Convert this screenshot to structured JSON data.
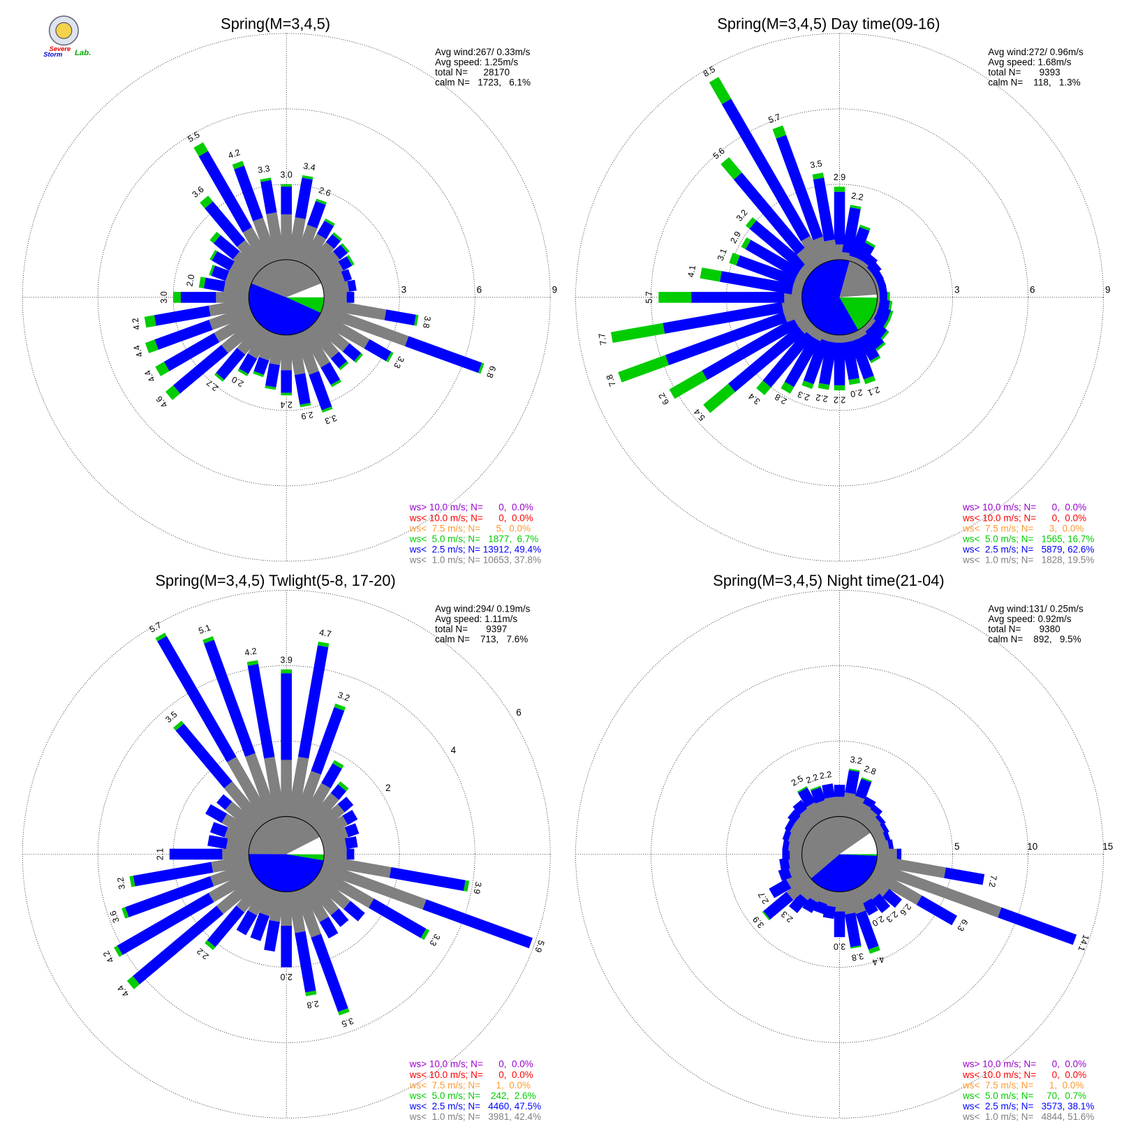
{
  "chart_data": [
    {
      "type": "windrose",
      "title": "Spring(M=3,4,5)",
      "logo_text": [
        "Severe",
        "Storm",
        "Lab."
      ],
      "rlim": [
        0,
        9
      ],
      "rticks": [
        3,
        6,
        9
      ],
      "rlabel_angle": 90,
      "stats": [
        "Avg wind:267/ 0.33m/s",
        "Avg speed: 1.25m/s",
        "total N=      28170"
      ],
      "calm": {
        "text": "calm N=   1723,   6.1%",
        "percent": 6.1
      },
      "legend": [
        {
          "text": "ws> 10.0 m/s; N=      0,  0.0%",
          "color": "#9900cc",
          "percent": 0.0
        },
        {
          "text": "ws< 10.0 m/s; N=      0,  0.0%",
          "color": "#ff0000",
          "percent": 0.0
        },
        {
          "text": "ws<  7.5 m/s; N=      5,  0.0%",
          "color": "#ff9933",
          "percent": 0.0
        },
        {
          "text": "ws<  5.0 m/s; N=   1877,  6.7%",
          "color": "#00cc00",
          "percent": 6.7
        },
        {
          "text": "ws<  2.5 m/s; N= 13912, 49.4%",
          "color": "#0000ff",
          "percent": 49.4
        },
        {
          "text": "ws<  1.0 m/s; N= 10653, 37.8%",
          "color": "#808080",
          "percent": 37.8
        }
      ],
      "series": [
        {
          "color": "#808080",
          "values": [
            1.8,
            1.7,
            1.5,
            1.3,
            1.2,
            1.1,
            1.0,
            0.9,
            1.0,
            0.9,
            2.5,
            3.6,
            2.2,
            1.6,
            1.5,
            1.6,
            1.7,
            1.6,
            1.4,
            1.2,
            1.1,
            1.2,
            1.3,
            1.7,
            1.7,
            1.7,
            1.6,
            1.3,
            1.0,
            1.0,
            1.0,
            1.1,
            1.3,
            1.6,
            1.8,
            1.9
          ]
        },
        {
          "color": "#0000ff",
          "values": [
            1.1,
            1.6,
            1.0,
            0.6,
            0.4,
            0.4,
            0.4,
            0.3,
            0.3,
            0.3,
            1.2,
            3.1,
            1.0,
            0.6,
            0.5,
            0.8,
            1.5,
            1.2,
            0.9,
            0.9,
            0.6,
            0.7,
            1.3,
            2.5,
            2.3,
            2.3,
            2.2,
            1.4,
            0.8,
            0.6,
            0.8,
            1.0,
            2.0,
            3.5,
            2.2,
            1.3
          ]
        },
        {
          "color": "#00cc00",
          "values": [
            0.1,
            0.1,
            0.1,
            0.1,
            0.1,
            0.1,
            0.1,
            0.0,
            0.0,
            0.0,
            0.1,
            0.1,
            0.1,
            0.1,
            0.1,
            0.1,
            0.1,
            0.1,
            0.1,
            0.1,
            0.1,
            0.1,
            0.1,
            0.4,
            0.4,
            0.4,
            0.4,
            0.3,
            0.2,
            0.1,
            0.1,
            0.2,
            0.3,
            0.4,
            0.2,
            0.1
          ]
        }
      ],
      "total_labels": [
        "3.0",
        "3.4",
        "2.6",
        null,
        null,
        null,
        null,
        null,
        null,
        null,
        "3.8",
        "6.8",
        "3.3",
        null,
        null,
        null,
        "3.3",
        "2.9",
        "2.4",
        null,
        null,
        "2.0",
        "2.7",
        "4.6",
        "4.4",
        "4.4",
        "4.2",
        "3.0",
        "2.0",
        null,
        null,
        null,
        "3.6",
        "5.5",
        "4.2",
        "3.3"
      ]
    },
    {
      "type": "windrose",
      "title": "Spring(M=3,4,5) Day time(09-16)",
      "rlim": [
        0,
        9
      ],
      "rticks": [
        3,
        6,
        9
      ],
      "rlabel_angle": 90,
      "stats": [
        "Avg wind:272/ 0.96m/s",
        "Avg speed: 1.68m/s",
        "total N=       9393"
      ],
      "calm": {
        "text": "calm N=    118,   1.3%",
        "percent": 1.3
      },
      "legend": [
        {
          "text": "ws> 10.0 m/s; N=      0,  0.0%",
          "color": "#9900cc",
          "percent": 0.0
        },
        {
          "text": "ws< 10.0 m/s; N=      0,  0.0%",
          "color": "#ff0000",
          "percent": 0.0
        },
        {
          "text": "ws<  7.5 m/s; N=      3,  0.0%",
          "color": "#ff9933",
          "percent": 0.0
        },
        {
          "text": "ws<  5.0 m/s; N=   1565, 16.7%",
          "color": "#00cc00",
          "percent": 16.7
        },
        {
          "text": "ws<  2.5 m/s; N=   5879, 62.6%",
          "color": "#0000ff",
          "percent": 62.6
        },
        {
          "text": "ws<  1.0 m/s; N=   1828, 19.5%",
          "color": "#808080",
          "percent": 19.5
        }
      ],
      "series": [
        {
          "color": "#808080",
          "values": [
            0.6,
            0.3,
            0.2,
            0.2,
            0.2,
            0.1,
            0.1,
            0.1,
            0.1,
            0.1,
            0.1,
            0.1,
            0.1,
            0.2,
            0.2,
            0.3,
            0.3,
            0.3,
            0.3,
            0.3,
            0.3,
            0.4,
            0.4,
            0.5,
            0.5,
            0.8,
            0.8,
            0.7,
            0.4,
            0.4,
            0.4,
            0.4,
            0.9,
            1.2,
            1.0,
            0.8
          ]
        },
        {
          "color": "#0000ff",
          "values": [
            2.1,
            1.8,
            1.2,
            0.7,
            0.4,
            0.4,
            0.3,
            0.3,
            0.3,
            0.3,
            0.4,
            0.5,
            0.5,
            0.6,
            0.8,
            1.0,
            1.6,
            1.5,
            1.7,
            1.7,
            1.8,
            2.1,
            2.6,
            3.6,
            4.2,
            5.0,
            4.8,
            3.7,
            2.9,
            2.4,
            2.3,
            2.6,
            3.9,
            6.3,
            4.3,
            2.5
          ]
        },
        {
          "color": "#00cc00",
          "values": [
            0.2,
            0.1,
            0.1,
            0.1,
            0.0,
            0.0,
            0.0,
            0.0,
            0.0,
            0.1,
            0.1,
            0.1,
            0.1,
            0.1,
            0.1,
            0.1,
            0.2,
            0.2,
            0.2,
            0.2,
            0.2,
            0.3,
            0.4,
            1.3,
            1.5,
            2.0,
            2.1,
            1.3,
            0.8,
            0.3,
            0.2,
            0.2,
            0.8,
            1.0,
            0.4,
            0.2
          ]
        }
      ],
      "total_labels": [
        "2.9",
        "2.2",
        null,
        null,
        null,
        null,
        null,
        null,
        null,
        null,
        null,
        null,
        null,
        null,
        null,
        null,
        "2.1",
        "2.0",
        "2.2",
        "2.2",
        "2.3",
        "2.8",
        "3.4",
        "5.4",
        "6.2",
        "7.8",
        "7.7",
        "5.7",
        "4.1",
        "3.1",
        "2.9",
        "3.2",
        "5.6",
        "8.5",
        "5.7",
        "3.5"
      ]
    },
    {
      "type": "windrose",
      "title": "Spring(M=3,4,5) Twlight(5-8, 17-20)",
      "rlim": [
        0,
        6
      ],
      "rticks": [
        2,
        4,
        6
      ],
      "rlabel_angle": 60,
      "stats": [
        "Avg wind:294/ 0.19m/s",
        "Avg speed: 1.11m/s",
        "total N=       9397"
      ],
      "calm": {
        "text": "calm N=    713,   7.6%",
        "percent": 7.6
      },
      "legend": [
        {
          "text": "ws> 10.0 m/s; N=      0,  0.0%",
          "color": "#9900cc",
          "percent": 0.0
        },
        {
          "text": "ws< 10.0 m/s; N=      0,  0.0%",
          "color": "#ff0000",
          "percent": 0.0
        },
        {
          "text": "ws<  7.5 m/s; N=      1,  0.0%",
          "color": "#ff9933",
          "percent": 0.0
        },
        {
          "text": "ws<  5.0 m/s; N=    242,  2.6%",
          "color": "#00cc00",
          "percent": 2.6
        },
        {
          "text": "ws<  2.5 m/s; N=   4460, 47.5%",
          "color": "#0000ff",
          "percent": 47.5
        },
        {
          "text": "ws<  1.0 m/s; N=   3981, 42.4%",
          "color": "#808080",
          "percent": 42.4
        }
      ],
      "series": [
        {
          "color": "#808080",
          "values": [
            1.5,
            1.6,
            1.3,
            1.1,
            1.0,
            0.9,
            0.8,
            0.7,
            0.6,
            0.6,
            1.8,
            2.9,
            1.6,
            1.1,
            1.0,
            1.0,
            1.3,
            1.1,
            0.9,
            0.8,
            0.7,
            0.8,
            0.9,
            1.3,
            1.3,
            1.1,
            1.0,
            0.7,
            0.6,
            0.7,
            0.9,
            1.0,
            1.4,
            1.9,
            1.8,
            1.6
          ]
        },
        {
          "color": "#0000ff",
          "values": [
            2.3,
            3.0,
            1.8,
            0.6,
            0.3,
            0.3,
            0.3,
            0.3,
            0.3,
            0.2,
            2.0,
            3.0,
            1.6,
            0.5,
            0.4,
            0.5,
            2.1,
            1.6,
            1.1,
            0.8,
            0.7,
            0.6,
            1.2,
            2.9,
            2.8,
            2.4,
            2.1,
            1.4,
            0.5,
            0.4,
            0.5,
            0.3,
            2.0,
            3.7,
            3.2,
            2.5
          ]
        },
        {
          "color": "#00cc00",
          "values": [
            0.1,
            0.1,
            0.1,
            0.1,
            0.1,
            0.0,
            0.0,
            0.0,
            0.0,
            0.0,
            0.1,
            0.0,
            0.1,
            0.0,
            0.0,
            0.0,
            0.1,
            0.1,
            0.0,
            0.0,
            0.0,
            0.0,
            0.1,
            0.2,
            0.1,
            0.1,
            0.1,
            0.0,
            0.0,
            0.0,
            0.0,
            0.0,
            0.1,
            0.1,
            0.1,
            0.1
          ]
        }
      ],
      "total_labels": [
        "3.9",
        "4.7",
        "3.2",
        null,
        null,
        null,
        null,
        null,
        null,
        null,
        "3.9",
        "5.9",
        "3.3",
        null,
        null,
        null,
        "3.5",
        "2.8",
        "2.0",
        null,
        null,
        null,
        "2.2",
        "4.4",
        "4.2",
        "3.6",
        "3.2",
        "2.1",
        null,
        null,
        null,
        null,
        "3.5",
        "5.7",
        "5.1",
        "4.2"
      ]
    },
    {
      "type": "windrose",
      "title": "Spring(M=3,4,5) Night time(21-04)",
      "rlim": [
        0,
        15
      ],
      "rticks": [
        5,
        10,
        15
      ],
      "rlabel_angle": 90,
      "stats": [
        "Avg wind:131/ 0.25m/s",
        "Avg speed: 0.92m/s",
        "total N=       9380"
      ],
      "calm": {
        "text": "calm N=    892,   9.5%",
        "percent": 9.5
      },
      "legend": [
        {
          "text": "ws> 10.0 m/s; N=      0,  0.0%",
          "color": "#9900cc",
          "percent": 0.0
        },
        {
          "text": "ws< 10.0 m/s; N=      0,  0.0%",
          "color": "#ff0000",
          "percent": 0.0
        },
        {
          "text": "ws<  7.5 m/s; N=      1,  0.0%",
          "color": "#ff9933",
          "percent": 0.0
        },
        {
          "text": "ws<  5.0 m/s; N=     70,  0.7%",
          "color": "#00cc00",
          "percent": 0.7
        },
        {
          "text": "ws<  2.5 m/s; N=   3573, 38.1%",
          "color": "#0000ff",
          "percent": 38.1
        },
        {
          "text": "ws<  1.0 m/s; N=   4844, 51.6%",
          "color": "#808080",
          "percent": 51.6
        }
      ],
      "series": [
        {
          "color": "#808080",
          "values": [
            1.3,
            1.6,
            1.5,
            1.2,
            1.1,
            0.9,
            0.8,
            0.7,
            0.8,
            1.3,
            4.6,
            8.8,
            3.6,
            1.5,
            1.2,
            1.1,
            1.6,
            1.5,
            1.3,
            1.0,
            0.9,
            1.0,
            1.2,
            1.8,
            1.4,
            1.0,
            0.9,
            0.8,
            0.9,
            1.0,
            1.1,
            1.1,
            1.2,
            1.3,
            1.2,
            1.3
          ]
        },
        {
          "color": "#0000ff",
          "values": [
            0.8,
            1.5,
            1.2,
            0.5,
            0.4,
            0.3,
            0.3,
            0.3,
            0.3,
            0.3,
            2.6,
            5.3,
            2.7,
            1.1,
            1.1,
            0.9,
            2.5,
            2.2,
            1.7,
            0.8,
            0.7,
            0.8,
            1.1,
            2.0,
            1.3,
            0.7,
            0.6,
            0.5,
            0.4,
            0.4,
            0.4,
            0.6,
            0.7,
            1.1,
            0.9,
            0.9
          ]
        },
        {
          "color": "#00cc00",
          "values": [
            0.0,
            0.1,
            0.1,
            0.0,
            0.0,
            0.0,
            0.0,
            0.0,
            0.0,
            0.0,
            0.0,
            0.0,
            0.0,
            0.0,
            0.0,
            0.0,
            0.3,
            0.1,
            0.0,
            0.0,
            0.0,
            0.0,
            0.0,
            0.1,
            0.0,
            0.0,
            0.0,
            0.0,
            0.0,
            0.0,
            0.0,
            0.0,
            0.0,
            0.1,
            0.1,
            0.0
          ]
        }
      ],
      "total_labels": [
        null,
        "3.2",
        "2.8",
        null,
        null,
        null,
        null,
        null,
        null,
        null,
        "7.2",
        "14.1",
        "6.3",
        "2.6",
        "2.3",
        "2.0",
        "4.4",
        "3.8",
        "3.0",
        null,
        null,
        null,
        "2.3",
        "3.9",
        "2.7",
        null,
        null,
        null,
        null,
        null,
        null,
        null,
        null,
        "2.5",
        "2.2",
        "2.2"
      ]
    }
  ]
}
